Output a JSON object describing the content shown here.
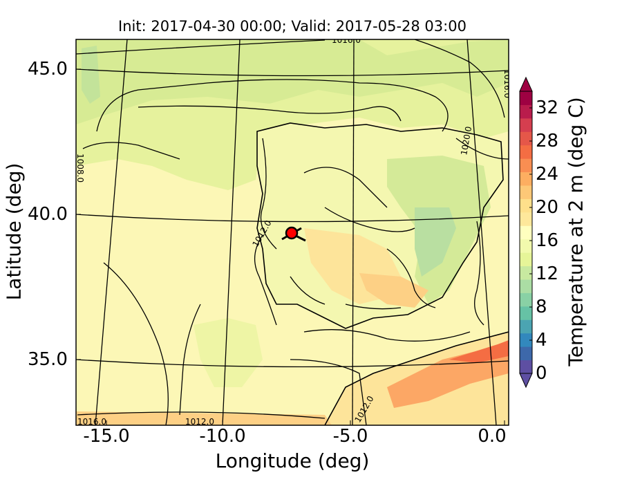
{
  "title": "Init: 2017-04-30 00:00; Valid: 2017-05-28 03:00",
  "xlabel": "Longitude (deg)",
  "ylabel": "Latitude (deg)",
  "colorbar": {
    "label": "Temperature at 2 m (deg C)",
    "ticks": [
      "0",
      "4",
      "8",
      "12",
      "16",
      "20",
      "24",
      "28",
      "32"
    ],
    "colors": [
      "#5e4fa2",
      "#3d68aa",
      "#3288bd",
      "#4ba4b2",
      "#66c2a5",
      "#89d1a5",
      "#abdda4",
      "#c8e9a0",
      "#e6f598",
      "#f2faad",
      "#ffffbf",
      "#fee89b",
      "#fee08b",
      "#fdc877",
      "#fdae61",
      "#f98e52",
      "#f46d43",
      "#e55749",
      "#d53e4f",
      "#b91c4c",
      "#9e0142"
    ]
  },
  "axes": {
    "xticks": [
      "-15.0",
      "-10.0",
      "-5.0",
      "0.0"
    ],
    "yticks": [
      "45.0",
      "40.0",
      "35.0"
    ]
  },
  "contour_labels": [
    "1016.0",
    "1016.0",
    "1020.0",
    "1008.0",
    "1012.0",
    "1012.0",
    "1016.0",
    "1012.0"
  ],
  "marker": {
    "color": "#ff0000"
  }
}
